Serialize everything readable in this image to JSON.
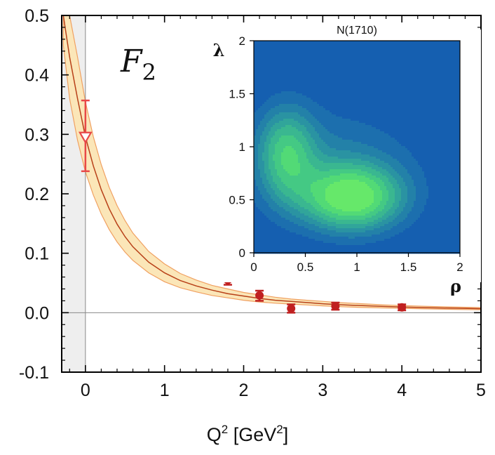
{
  "chart_data": {
    "main": {
      "type": "line",
      "panel_label": "F",
      "panel_label_sub": "2",
      "xlabel": "Q",
      "xlabel_sup": "2",
      "xlabel_unit_open": " [GeV",
      "xlabel_unit_sup": "2",
      "xlabel_unit_close": "]",
      "xlim": [
        -0.3,
        5
      ],
      "ylim": [
        -0.1,
        0.5
      ],
      "xticks": [
        0,
        1,
        2,
        3,
        4,
        5
      ],
      "xtick_labels": [
        "0",
        "1",
        "2",
        "3",
        "4",
        "5"
      ],
      "yticks": [
        -0.1,
        0.0,
        0.1,
        0.2,
        0.3,
        0.4,
        0.5
      ],
      "ytick_labels": [
        "-0.1",
        "0.0",
        "0.1",
        "0.2",
        "0.3",
        "0.4",
        "0.5"
      ],
      "shaded_region": [
        -0.3,
        0
      ],
      "curve": {
        "name": "central",
        "x": [
          -0.28,
          -0.2,
          -0.1,
          0,
          0.1,
          0.2,
          0.3,
          0.4,
          0.5,
          0.6,
          0.8,
          1.0,
          1.2,
          1.4,
          1.6,
          1.8,
          2.0,
          2.2,
          2.4,
          2.6,
          2.8,
          3.0,
          3.2,
          3.5,
          3.8,
          4.0,
          4.3,
          4.6,
          5.0
        ],
        "y": [
          0.5,
          0.43,
          0.36,
          0.296,
          0.247,
          0.207,
          0.175,
          0.149,
          0.128,
          0.111,
          0.085,
          0.067,
          0.054,
          0.045,
          0.038,
          0.032,
          0.028,
          0.024,
          0.021,
          0.019,
          0.017,
          0.015,
          0.0135,
          0.0118,
          0.0104,
          0.0096,
          0.0085,
          0.0077,
          0.0068
        ]
      },
      "band": {
        "name": "uncertainty",
        "x": [
          -0.28,
          -0.2,
          -0.1,
          0,
          0.1,
          0.2,
          0.3,
          0.4,
          0.5,
          0.6,
          0.8,
          1.0,
          1.2,
          1.4,
          1.6,
          1.8,
          2.0,
          2.2,
          2.4,
          2.6,
          2.8,
          3.0,
          3.2,
          3.5,
          3.8,
          4.0,
          4.3,
          4.6,
          5.0
        ],
        "upper": [
          0.5,
          0.5,
          0.43,
          0.355,
          0.296,
          0.249,
          0.211,
          0.18,
          0.155,
          0.134,
          0.103,
          0.082,
          0.066,
          0.055,
          0.046,
          0.04,
          0.034,
          0.03,
          0.026,
          0.023,
          0.021,
          0.019,
          0.017,
          0.015,
          0.013,
          0.012,
          0.0108,
          0.0097,
          0.0085
        ],
        "lower": [
          0.45,
          0.36,
          0.29,
          0.237,
          0.198,
          0.166,
          0.14,
          0.119,
          0.102,
          0.088,
          0.067,
          0.052,
          0.042,
          0.035,
          0.029,
          0.025,
          0.021,
          0.018,
          0.016,
          0.0145,
          0.013,
          0.0115,
          0.0102,
          0.0088,
          0.0078,
          0.0072,
          0.0064,
          0.0057,
          0.005
        ]
      },
      "photon_point": {
        "x": 0,
        "y": 0.296,
        "yerr_low": 0.238,
        "yerr_high": 0.357
      },
      "points": [
        {
          "x": 1.8,
          "y": 0.055,
          "yerr_low": 0.047,
          "yerr_high": 0.062
        },
        {
          "x": 2.2,
          "y": 0.029,
          "yerr_low": 0.02,
          "yerr_high": 0.037
        },
        {
          "x": 2.6,
          "y": 0.007,
          "yerr_low": 0.0,
          "yerr_high": 0.014
        },
        {
          "x": 3.16,
          "y": 0.011,
          "yerr_low": 0.005,
          "yerr_high": 0.017
        },
        {
          "x": 4.0,
          "y": 0.009,
          "yerr_low": 0.004,
          "yerr_high": 0.014
        }
      ]
    },
    "inset": {
      "type": "heatmap",
      "title": "N(1710)",
      "xlabel": "ρ",
      "ylabel": "λ",
      "xlim": [
        0,
        2
      ],
      "ylim": [
        0,
        2
      ],
      "xticks": [
        0,
        0.5,
        1,
        1.5,
        2
      ],
      "xtick_labels": [
        "0",
        "0.5",
        "1",
        "1.5",
        "2"
      ],
      "yticks": [
        0,
        0.5,
        1,
        1.5,
        2
      ],
      "ytick_labels": [
        "0",
        "0.5",
        "1",
        "1.5",
        "2"
      ],
      "contour_colors": [
        "#155fb0",
        "#1c6fae",
        "#2381a8",
        "#2a93a2",
        "#31a59a",
        "#3ab790",
        "#44c984",
        "#52da76",
        "#66e86a"
      ],
      "peaks": [
        {
          "x": 0.95,
          "y": 0.52,
          "height": 1.0,
          "sx": 0.33,
          "sy": 0.21
        },
        {
          "x": 0.32,
          "y": 0.93,
          "height": 0.6,
          "sx": 0.19,
          "sy": 0.3
        }
      ],
      "background_blob": {
        "x": 0.72,
        "y": 0.88,
        "height": 0.22,
        "sx": 0.6,
        "sy": 0.35
      }
    }
  }
}
